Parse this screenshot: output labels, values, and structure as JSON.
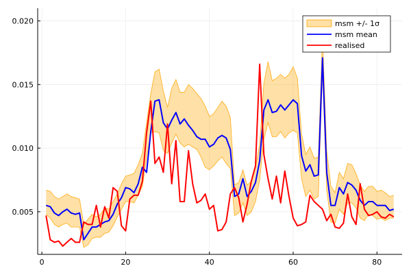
{
  "chart_data": {
    "type": "line",
    "title": "",
    "xlabel": "",
    "ylabel": "",
    "xlim": [
      -1,
      86
    ],
    "ylim": [
      0.00165,
      0.021
    ],
    "x_ticks": [
      0,
      20,
      40,
      60,
      80
    ],
    "y_ticks": [
      0.005,
      0.01,
      0.015,
      0.02
    ],
    "x_tick_labels": [
      "0",
      "20",
      "40",
      "60",
      "80"
    ],
    "y_tick_labels": [
      "0.005",
      "0.010",
      "0.015",
      "0.020"
    ],
    "grid": true,
    "legend_position": "top-right",
    "x": [
      1,
      2,
      3,
      4,
      5,
      6,
      7,
      8,
      9,
      10,
      11,
      12,
      13,
      14,
      15,
      16,
      17,
      18,
      19,
      20,
      21,
      22,
      23,
      24,
      25,
      26,
      27,
      28,
      29,
      30,
      31,
      32,
      33,
      34,
      35,
      36,
      37,
      38,
      39,
      40,
      41,
      42,
      43,
      44,
      45,
      46,
      47,
      48,
      49,
      50,
      51,
      52,
      53,
      54,
      55,
      56,
      57,
      58,
      59,
      60,
      61,
      62,
      63,
      64,
      65,
      66,
      67,
      68,
      69,
      70,
      71,
      72,
      73,
      74,
      75,
      76,
      77,
      78,
      79,
      80,
      81,
      82,
      83,
      84
    ],
    "series": [
      {
        "name": "msm +/- 1σ",
        "kind": "band",
        "color": "#ffa500",
        "upper": [
          0.0067,
          0.0066,
          0.0062,
          0.006,
          0.0062,
          0.0064,
          0.0062,
          0.0061,
          0.006,
          0.004,
          0.0044,
          0.0048,
          0.0046,
          0.0048,
          0.0053,
          0.0052,
          0.0058,
          0.0064,
          0.0072,
          0.0078,
          0.0079,
          0.008,
          0.0087,
          0.0096,
          0.012,
          0.0143,
          0.016,
          0.0162,
          0.0145,
          0.0132,
          0.0147,
          0.0154,
          0.0144,
          0.0144,
          0.015,
          0.0147,
          0.0143,
          0.0139,
          0.0133,
          0.0125,
          0.0127,
          0.0132,
          0.0137,
          0.0133,
          0.0124,
          0.0071,
          0.0073,
          0.0083,
          0.0071,
          0.0074,
          0.0085,
          0.0103,
          0.0151,
          0.0168,
          0.0153,
          0.0155,
          0.0158,
          0.0155,
          0.0158,
          0.0164,
          0.0155,
          0.0111,
          0.0095,
          0.0101,
          0.0092,
          0.0093,
          0.0188,
          0.0098,
          0.007,
          0.0065,
          0.0081,
          0.0076,
          0.0088,
          0.0087,
          0.008,
          0.0071,
          0.0066,
          0.007,
          0.007,
          0.0066,
          0.0067,
          0.0065,
          0.0062,
          0.0063
        ],
        "lower": [
          0.0048,
          0.0045,
          0.004,
          0.0038,
          0.004,
          0.0041,
          0.0038,
          0.0038,
          0.0038,
          0.0022,
          0.0024,
          0.0029,
          0.003,
          0.003,
          0.0033,
          0.0034,
          0.0039,
          0.0046,
          0.0052,
          0.0058,
          0.0058,
          0.0057,
          0.0063,
          0.007,
          0.0092,
          0.0112,
          0.0113,
          0.0112,
          0.0098,
          0.0096,
          0.0104,
          0.0111,
          0.0104,
          0.0101,
          0.0103,
          0.0101,
          0.0099,
          0.0093,
          0.0085,
          0.0083,
          0.0086,
          0.009,
          0.0093,
          0.0088,
          0.0084,
          0.0047,
          0.0049,
          0.0057,
          0.0047,
          0.005,
          0.0058,
          0.0075,
          0.0107,
          0.012,
          0.0109,
          0.0109,
          0.0113,
          0.0108,
          0.0112,
          0.0114,
          0.0112,
          0.0076,
          0.0062,
          0.0067,
          0.006,
          0.0062,
          0.016,
          0.0067,
          0.0042,
          0.0041,
          0.0052,
          0.0048,
          0.0057,
          0.0057,
          0.0053,
          0.0045,
          0.0043,
          0.0048,
          0.0047,
          0.0044,
          0.0045,
          0.0043,
          0.0045,
          0.0045
        ]
      },
      {
        "name": "msm mean",
        "kind": "line",
        "color": "#0000ff",
        "values": [
          0.0055,
          0.0054,
          0.0049,
          0.0047,
          0.005,
          0.0052,
          0.0049,
          0.0048,
          0.0049,
          0.0028,
          0.0033,
          0.0038,
          0.0038,
          0.004,
          0.0042,
          0.0043,
          0.0048,
          0.0056,
          0.0061,
          0.0069,
          0.0068,
          0.0065,
          0.0072,
          0.0085,
          0.0081,
          0.0113,
          0.0137,
          0.0138,
          0.012,
          0.0115,
          0.0122,
          0.0128,
          0.0119,
          0.0123,
          0.0118,
          0.0114,
          0.0109,
          0.0107,
          0.0107,
          0.0101,
          0.0103,
          0.0108,
          0.011,
          0.0108,
          0.0099,
          0.0062,
          0.0064,
          0.0076,
          0.0062,
          0.0066,
          0.0073,
          0.009,
          0.013,
          0.0138,
          0.0128,
          0.0129,
          0.0134,
          0.013,
          0.0134,
          0.0138,
          0.0135,
          0.0094,
          0.0082,
          0.0087,
          0.0078,
          0.0079,
          0.0171,
          0.0081,
          0.0055,
          0.0055,
          0.0069,
          0.0064,
          0.0073,
          0.0071,
          0.0067,
          0.0059,
          0.0055,
          0.0058,
          0.0058,
          0.0055,
          0.0055,
          0.0055,
          0.0051,
          0.0052
        ]
      },
      {
        "name": "realised",
        "kind": "line",
        "color": "#ff0000",
        "values": [
          0.0047,
          0.0028,
          0.0026,
          0.0027,
          0.0023,
          0.0026,
          0.0029,
          0.0026,
          0.0026,
          0.0042,
          0.004,
          0.004,
          0.0055,
          0.0038,
          0.0054,
          0.0045,
          0.0069,
          0.0066,
          0.0039,
          0.0035,
          0.006,
          0.0063,
          0.0063,
          0.0074,
          0.0112,
          0.0137,
          0.0088,
          0.0093,
          0.0081,
          0.0119,
          0.0072,
          0.0106,
          0.0058,
          0.0058,
          0.0098,
          0.0072,
          0.0057,
          0.0059,
          0.0064,
          0.0052,
          0.0055,
          0.0035,
          0.0036,
          0.0042,
          0.0064,
          0.0069,
          0.0061,
          0.0042,
          0.0056,
          0.0074,
          0.0086,
          0.0166,
          0.0095,
          0.0076,
          0.006,
          0.0078,
          0.0057,
          0.0082,
          0.0062,
          0.0045,
          0.0039,
          0.004,
          0.0042,
          0.0063,
          0.0058,
          0.0055,
          0.0052,
          0.0043,
          0.0048,
          0.0038,
          0.0037,
          0.0041,
          0.0064,
          0.0046,
          0.004,
          0.0072,
          0.0052,
          0.0047,
          0.0048,
          0.005,
          0.0046,
          0.0045,
          0.0048,
          0.0046
        ]
      }
    ]
  }
}
